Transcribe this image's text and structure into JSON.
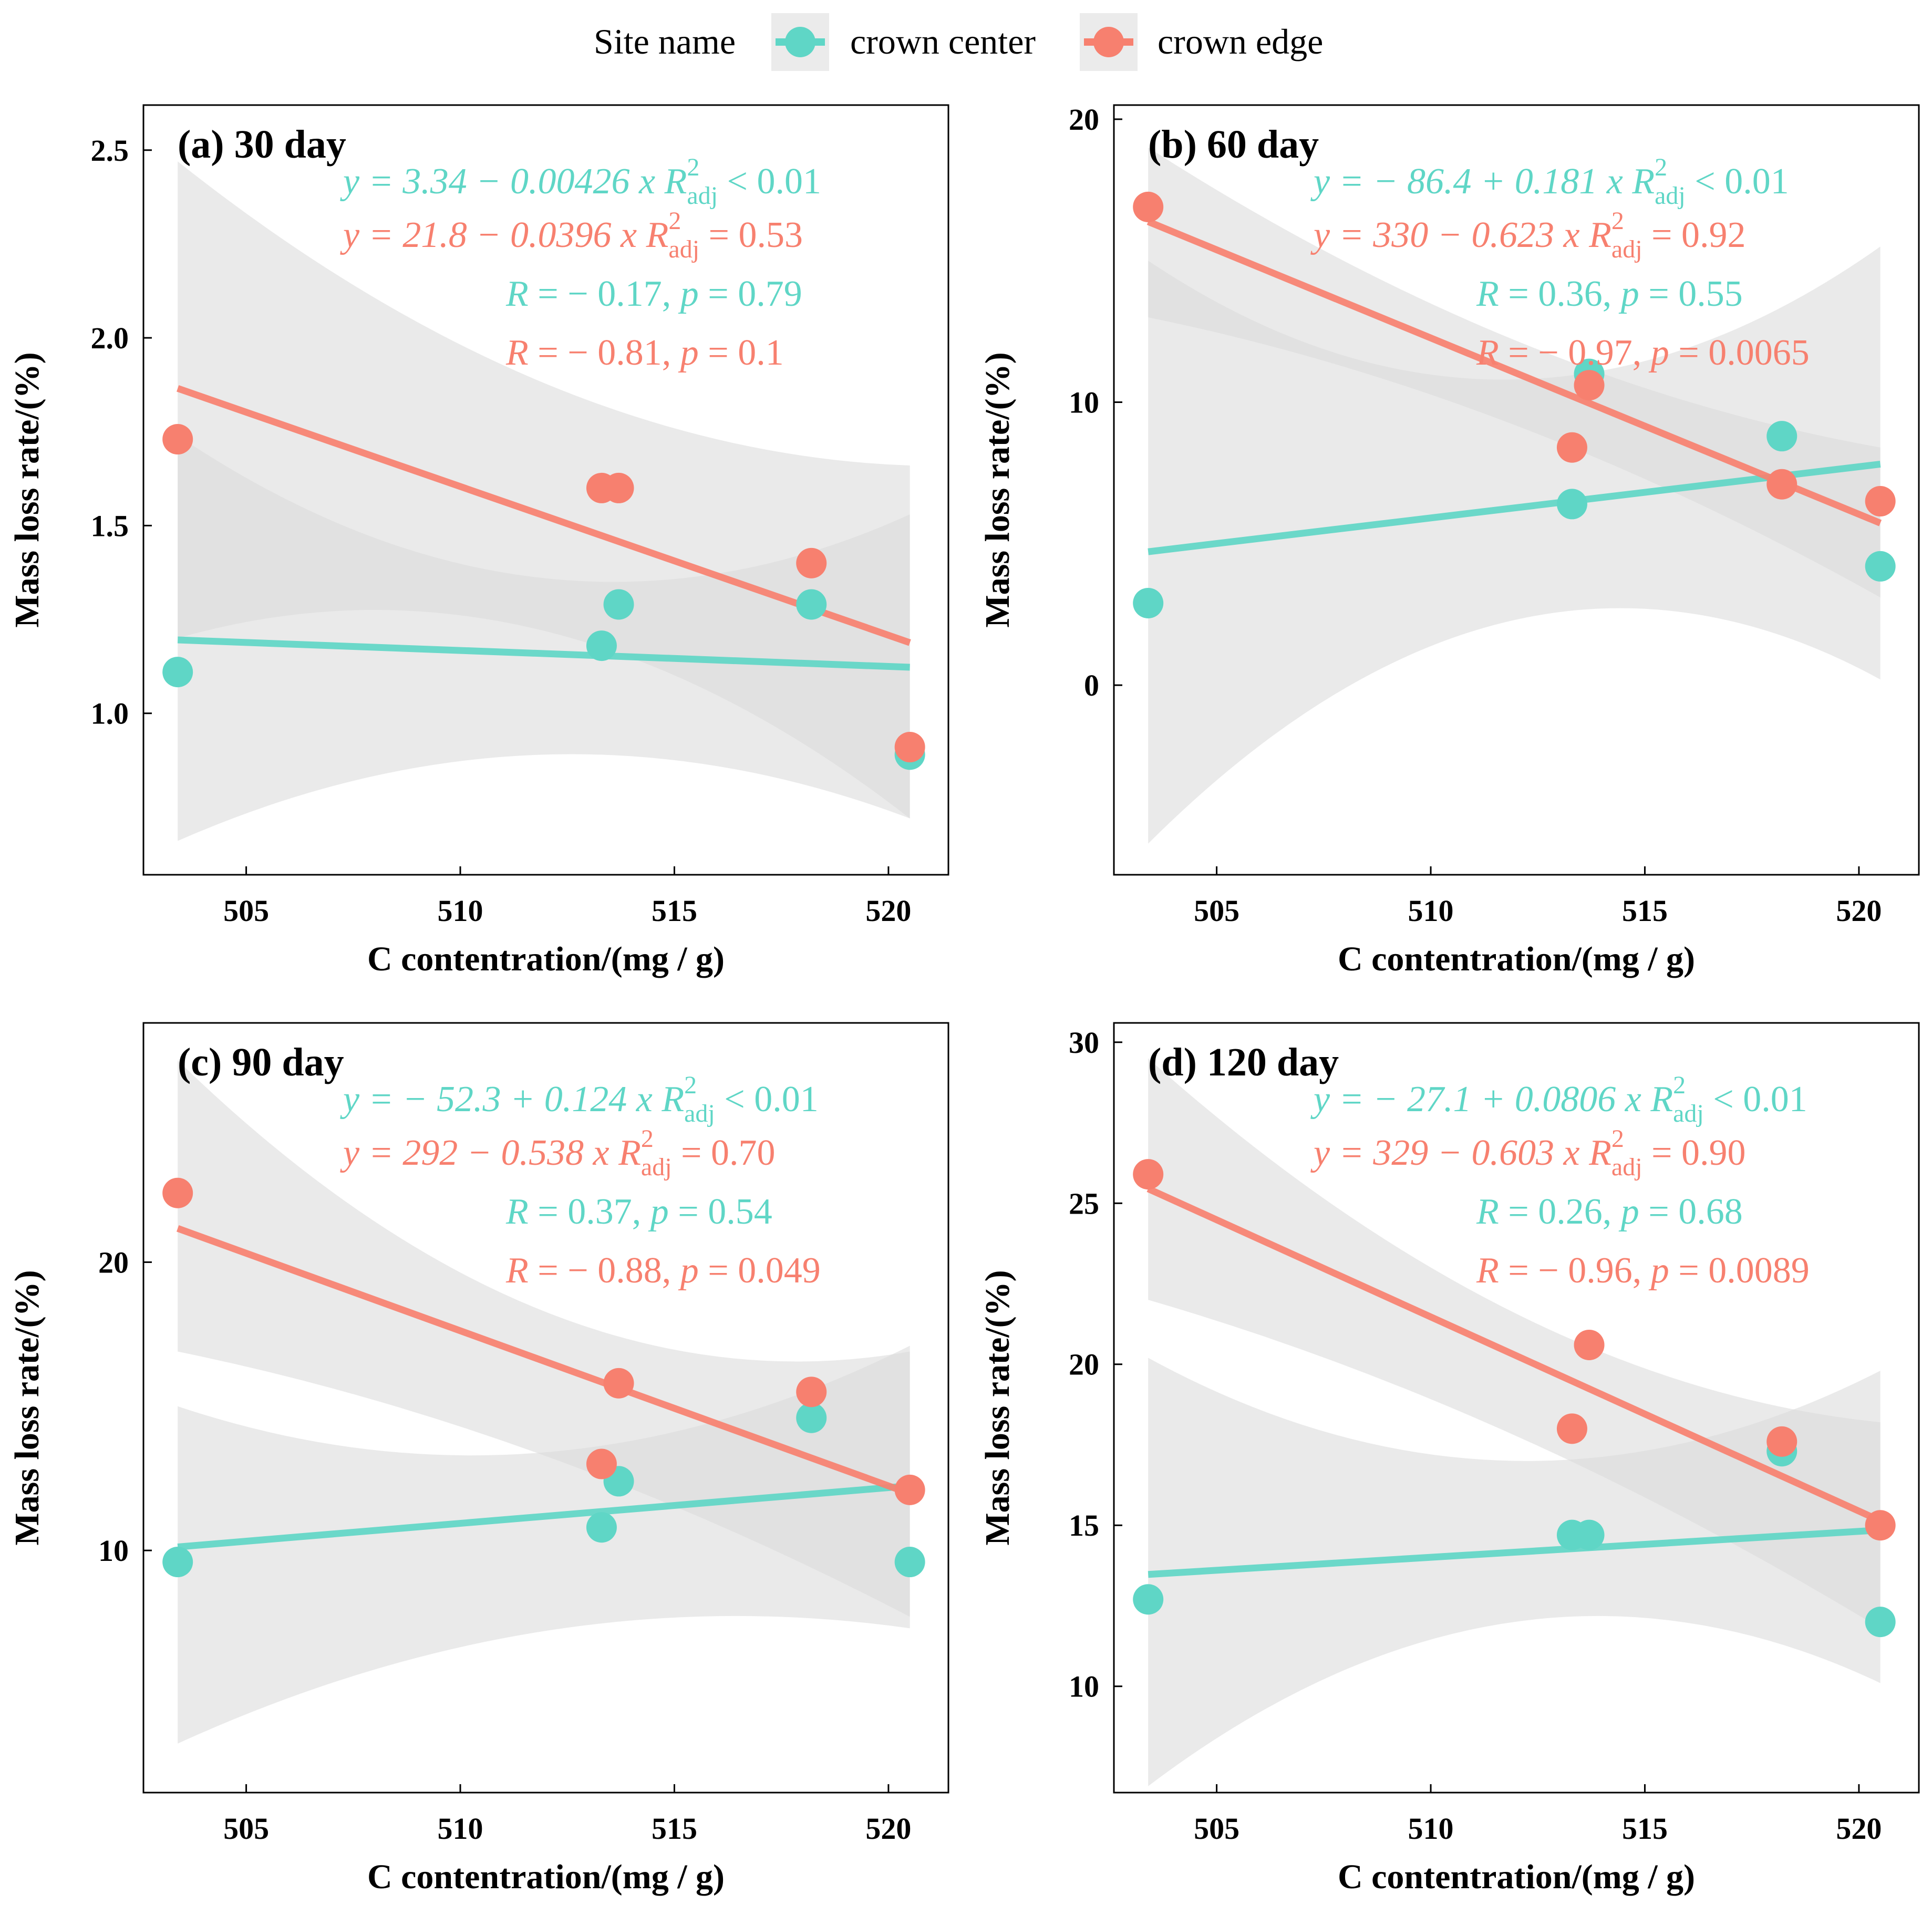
{
  "colors": {
    "center": "#5fd6c6",
    "edge": "#f7806f",
    "band": "#d9d9d9"
  },
  "legend": {
    "title": "Site name",
    "items": [
      {
        "key": "center",
        "label": "crown center"
      },
      {
        "key": "edge",
        "label": "crown edge"
      }
    ]
  },
  "chart_data": [
    {
      "type": "scatter",
      "title": "(a) 30 day",
      "xlabel": "C contentration/(mg / g)",
      "ylabel": "Mass loss rate/(%)",
      "xlim": [
        502.6,
        521.4
      ],
      "ylim": [
        0.57,
        2.62
      ],
      "xticks": [
        505,
        510,
        515,
        520
      ],
      "yticks": [
        1.0,
        1.5,
        2.0,
        2.5
      ],
      "ytick_labels": [
        "1.0",
        "1.5",
        "2.0",
        "2.5"
      ],
      "series": [
        {
          "name": "crown center",
          "key": "center",
          "points": [
            [
              503.4,
              1.11
            ],
            [
              513.3,
              1.18
            ],
            [
              513.7,
              1.29
            ],
            [
              518.2,
              1.29
            ],
            [
              520.5,
              0.89
            ]
          ],
          "fit": {
            "intercept": 3.34,
            "slope": -0.00426,
            "x_range": [
              503.4,
              520.5
            ]
          },
          "band": {
            "upper": [
              1.74,
              1.53
            ],
            "lower": [
              0.66,
              0.72
            ],
            "mid_upper": 1.36,
            "mid_lower": 0.89
          },
          "equation": {
            "eq": "y = 3.34 − 0.00426 x",
            "r2": "< 0.01"
          },
          "corr": {
            "R": "− 0.17",
            "p": "0.79"
          }
        },
        {
          "name": "crown edge",
          "key": "edge",
          "points": [
            [
              503.4,
              1.73
            ],
            [
              513.3,
              1.6
            ],
            [
              513.7,
              1.6
            ],
            [
              518.2,
              1.4
            ],
            [
              520.5,
              0.91
            ]
          ],
          "fit": {
            "intercept": 21.8,
            "slope": -0.0396,
            "x_range": [
              503.4,
              520.5
            ]
          },
          "band": {
            "upper": [
              2.47,
              1.66
            ],
            "lower": [
              1.2,
              0.72
            ],
            "mid_upper": 1.88,
            "mid_lower": 1.22
          },
          "equation": {
            "eq": "y = 21.8 − 0.0396 x",
            "r2": "= 0.53"
          },
          "corr": {
            "R": "− 0.81",
            "p": "0.1"
          }
        }
      ]
    },
    {
      "type": "scatter",
      "title": "(b) 60 day",
      "xlabel": "C contentration/(mg / g)",
      "ylabel": "Mass loss rate/(%)",
      "xlim": [
        502.6,
        521.4
      ],
      "ylim": [
        -6.7,
        20.5
      ],
      "xticks": [
        505,
        510,
        515,
        520
      ],
      "yticks": [
        0,
        10,
        20
      ],
      "ytick_labels": [
        "0",
        "10",
        "20"
      ],
      "series": [
        {
          "name": "crown center",
          "key": "center",
          "points": [
            [
              503.4,
              2.9
            ],
            [
              513.3,
              6.4
            ],
            [
              513.7,
              11.0
            ],
            [
              518.2,
              8.8
            ],
            [
              520.5,
              4.2
            ]
          ],
          "fit": {
            "intercept": -86.4,
            "slope": 0.181,
            "x_range": [
              503.4,
              520.5
            ]
          },
          "band": {
            "upper": [
              15.0,
              15.5
            ],
            "lower": [
              -5.6,
              0.2
            ],
            "mid_upper": 10.8,
            "mid_lower": 2.3
          },
          "equation": {
            "eq": "y = − 86.4 + 0.181 x",
            "r2": "< 0.01"
          },
          "corr": {
            "R": "0.36",
            "p": "0.55"
          }
        },
        {
          "name": "crown edge",
          "key": "edge",
          "points": [
            [
              503.4,
              16.9
            ],
            [
              513.3,
              8.4
            ],
            [
              513.7,
              10.6
            ],
            [
              518.2,
              7.1
            ],
            [
              520.5,
              6.5
            ]
          ],
          "fit": {
            "intercept": 330,
            "slope": -0.623,
            "x_range": [
              503.4,
              520.5
            ]
          },
          "band": {
            "upper": [
              19.0,
              8.4
            ],
            "lower": [
              13.0,
              3.1
            ],
            "mid_upper": 12.2,
            "mid_lower": 9.2
          },
          "equation": {
            "eq": "y = 330 − 0.623 x",
            "r2": "= 0.92"
          },
          "corr": {
            "R": "− 0.97",
            "p": "0.0065"
          }
        }
      ]
    },
    {
      "type": "scatter",
      "title": "(c) 90 day",
      "xlabel": "C contentration/(mg / g)",
      "ylabel": "Mass loss rate/(%)",
      "xlim": [
        502.6,
        521.4
      ],
      "ylim": [
        1.6,
        28.3
      ],
      "xticks": [
        505,
        510,
        515,
        520
      ],
      "yticks": [
        10,
        20
      ],
      "ytick_labels": [
        "10",
        "20"
      ],
      "series": [
        {
          "name": "crown center",
          "key": "center",
          "points": [
            [
              503.4,
              9.6
            ],
            [
              513.3,
              10.8
            ],
            [
              513.7,
              12.4
            ],
            [
              518.2,
              14.6
            ],
            [
              520.5,
              9.6
            ]
          ],
          "fit": {
            "intercept": -52.3,
            "slope": 0.124,
            "x_range": [
              503.4,
              520.5
            ]
          },
          "band": {
            "upper": [
              15.0,
              17.1
            ],
            "lower": [
              3.3,
              7.3
            ],
            "mid_upper": 13.4,
            "mid_lower": 7.2
          },
          "equation": {
            "eq": "y = − 52.3 + 0.124 x",
            "r2": "< 0.01"
          },
          "corr": {
            "R": "0.37",
            "p": "0.54"
          }
        },
        {
          "name": "crown edge",
          "key": "edge",
          "points": [
            [
              503.4,
              22.4
            ],
            [
              513.3,
              13.0
            ],
            [
              513.7,
              15.8
            ],
            [
              518.2,
              15.5
            ],
            [
              520.5,
              12.1
            ]
          ],
          "fit": {
            "intercept": 292,
            "slope": -0.538,
            "x_range": [
              503.4,
              520.5
            ]
          },
          "band": {
            "upper": [
              27.0,
              16.9
            ],
            "lower": [
              16.9,
              7.7
            ],
            "mid_upper": 18.3,
            "mid_lower": 13.3
          },
          "equation": {
            "eq": "y = 292 − 0.538 x",
            "r2": "= 0.70"
          },
          "corr": {
            "R": "− 0.88",
            "p": "0.049"
          }
        }
      ]
    },
    {
      "type": "scatter",
      "title": "(d) 120 day",
      "xlabel": "C contentration/(mg / g)",
      "ylabel": "Mass loss rate/(%)",
      "xlim": [
        502.6,
        521.4
      ],
      "ylim": [
        6.7,
        30.6
      ],
      "xticks": [
        505,
        510,
        515,
        520
      ],
      "yticks": [
        10,
        15,
        20,
        25,
        30
      ],
      "ytick_labels": [
        "10",
        "15",
        "20",
        "25",
        "30"
      ],
      "series": [
        {
          "name": "crown center",
          "key": "center",
          "points": [
            [
              503.4,
              12.7
            ],
            [
              513.3,
              14.7
            ],
            [
              513.7,
              14.7
            ],
            [
              518.2,
              17.3
            ],
            [
              520.5,
              12.0
            ]
          ],
          "fit": {
            "intercept": -27.1,
            "slope": 0.0806,
            "x_range": [
              503.4,
              520.5
            ]
          },
          "band": {
            "upper": [
              20.2,
              19.8
            ],
            "lower": [
              6.9,
              10.1
            ],
            "mid_upper": 17.0,
            "mid_lower": 12.0
          },
          "equation": {
            "eq": "y = − 27.1 + 0.0806 x",
            "r2": "< 0.01"
          },
          "corr": {
            "R": "0.26",
            "p": "0.68"
          }
        },
        {
          "name": "crown edge",
          "key": "edge",
          "points": [
            [
              503.4,
              25.9
            ],
            [
              513.3,
              18.0
            ],
            [
              513.7,
              20.6
            ],
            [
              518.2,
              17.6
            ],
            [
              520.5,
              15.0
            ]
          ],
          "fit": {
            "intercept": 329,
            "slope": -0.603,
            "x_range": [
              503.4,
              520.5
            ]
          },
          "band": {
            "upper": [
              29.5,
              18.2
            ],
            "lower": [
              22.0,
              11.8
            ],
            "mid_upper": 21.6,
            "mid_lower": 17.8
          },
          "equation": {
            "eq": "y = 329 − 0.603 x",
            "r2": "= 0.90"
          },
          "corr": {
            "R": "− 0.96",
            "p": "0.0089"
          }
        }
      ]
    }
  ]
}
